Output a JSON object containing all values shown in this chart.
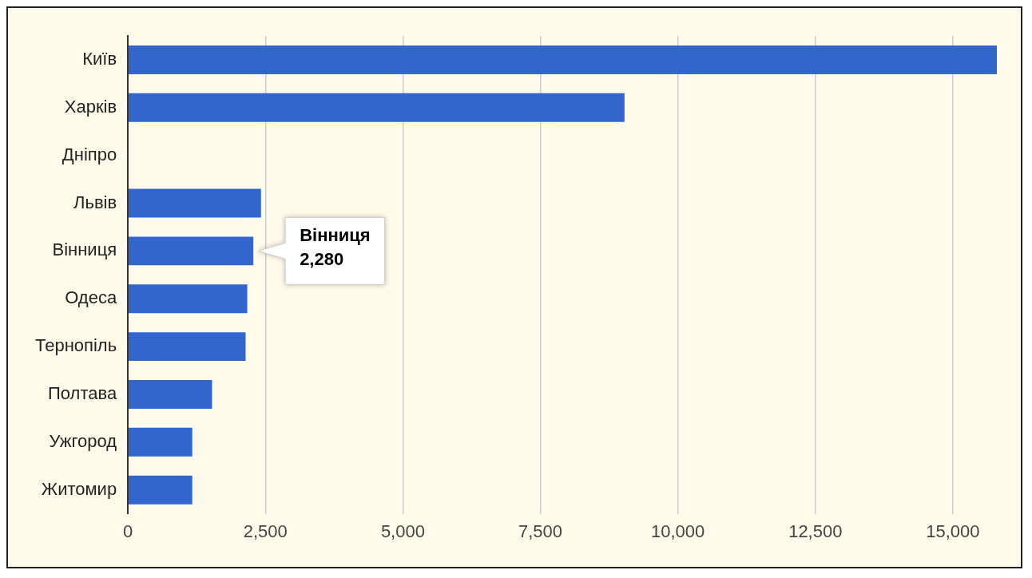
{
  "chart_data": {
    "type": "bar",
    "orientation": "horizontal",
    "categories": [
      "Київ",
      "Харків",
      "Дніпро",
      "Львів",
      "Вінниця",
      "Одеса",
      "Тернопіль",
      "Полтава",
      "Ужгород",
      "Житомир"
    ],
    "values": [
      15800,
      9030,
      null,
      2420,
      2280,
      2170,
      2140,
      1530,
      1170,
      1170
    ],
    "color": "#3366cc",
    "xlim": [
      0,
      15800
    ],
    "xticks": [
      0,
      {
        "value": 2500,
        "label": "2,500"
      },
      {
        "value": 5000,
        "label": "5,000"
      },
      {
        "value": 7500,
        "label": "7,500"
      },
      {
        "value": 10000,
        "label": "10,000"
      },
      {
        "value": 12500,
        "label": "12,500"
      },
      {
        "value": 15000,
        "label": "15,000"
      }
    ],
    "grid": "x",
    "legend": false,
    "annotations": [
      {
        "text": "Вінниця\n2,280",
        "x": 2280,
        "y": "Вінниця"
      }
    ]
  }
}
